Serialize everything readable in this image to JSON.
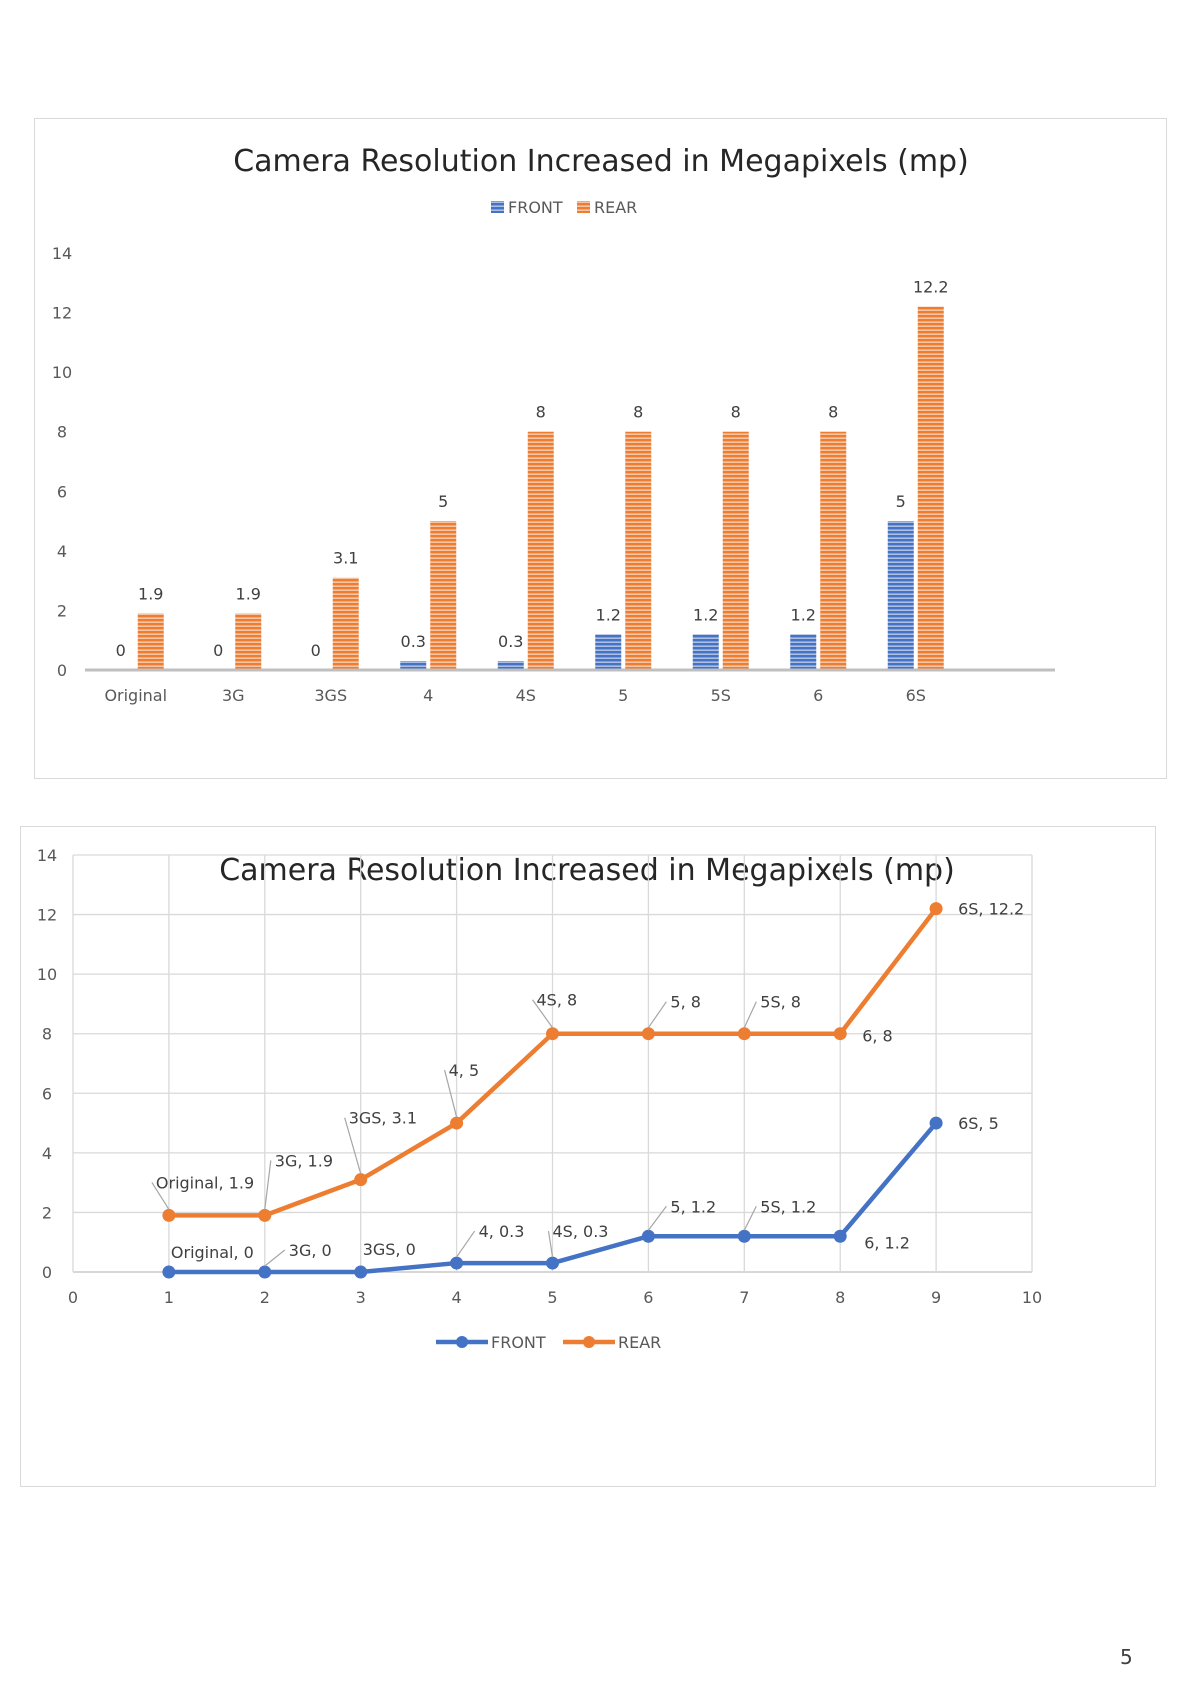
{
  "page_number": "5",
  "colors": {
    "front": "#4472C4",
    "rear": "#ED7D31",
    "grid": "#d9d9d9",
    "axis": "#bfbfbf"
  },
  "chart_data": [
    {
      "type": "bar",
      "title": "Camera Resolution Increased in Megapixels (mp)",
      "categories": [
        "Original",
        "3G",
        "3GS",
        "4",
        "4S",
        "5",
        "5S",
        "6",
        "6S"
      ],
      "series": [
        {
          "name": "FRONT",
          "values": [
            0,
            0,
            0,
            0.3,
            0.3,
            1.2,
            1.2,
            1.2,
            5
          ]
        },
        {
          "name": "REAR",
          "values": [
            1.9,
            1.9,
            3.1,
            5,
            8,
            8,
            8,
            8,
            12.2
          ]
        }
      ],
      "data_labels": {
        "FRONT": [
          "0",
          "0",
          "0",
          "0.3",
          "0.3",
          "1.2",
          "1.2",
          "1.2",
          "5"
        ],
        "REAR": [
          "1.9",
          "1.9",
          "3.1",
          "5",
          "8",
          "8",
          "8",
          "8",
          "12.2"
        ]
      },
      "y_ticks": [
        "0",
        "2",
        "4",
        "6",
        "8",
        "10",
        "12",
        "14"
      ],
      "ylim": [
        0,
        14
      ],
      "grid": false,
      "legend": "top",
      "pattern": "horizontal-stripes"
    },
    {
      "type": "line",
      "title": "Camera Resolution Increased in Megapixels (mp)",
      "x": [
        1,
        2,
        3,
        4,
        5,
        6,
        7,
        8,
        9
      ],
      "series": [
        {
          "name": "FRONT",
          "values": [
            0,
            0,
            0,
            0.3,
            0.3,
            1.2,
            1.2,
            1.2,
            5
          ],
          "point_labels": [
            "Original, 0",
            "3G, 0",
            "3GS, 0",
            "4, 0.3",
            "4S, 0.3",
            "5, 1.2",
            "5S, 1.2",
            "6, 1.2",
            "6S, 5"
          ]
        },
        {
          "name": "REAR",
          "values": [
            1.9,
            1.9,
            3.1,
            5,
            8,
            8,
            8,
            8,
            12.2
          ],
          "point_labels": [
            "Original, 1.9",
            "3G, 1.9",
            "3GS, 3.1",
            "4, 5",
            "4S, 8",
            "5, 8",
            "5S, 8",
            "6, 8",
            "6S, 12.2"
          ]
        }
      ],
      "x_ticks": [
        "0",
        "1",
        "2",
        "3",
        "4",
        "5",
        "6",
        "7",
        "8",
        "9",
        "10"
      ],
      "y_ticks": [
        "0",
        "2",
        "4",
        "6",
        "8",
        "10",
        "12",
        "14"
      ],
      "xlim": [
        0,
        10
      ],
      "ylim": [
        0,
        14
      ],
      "grid": true,
      "legend": "bottom"
    }
  ]
}
